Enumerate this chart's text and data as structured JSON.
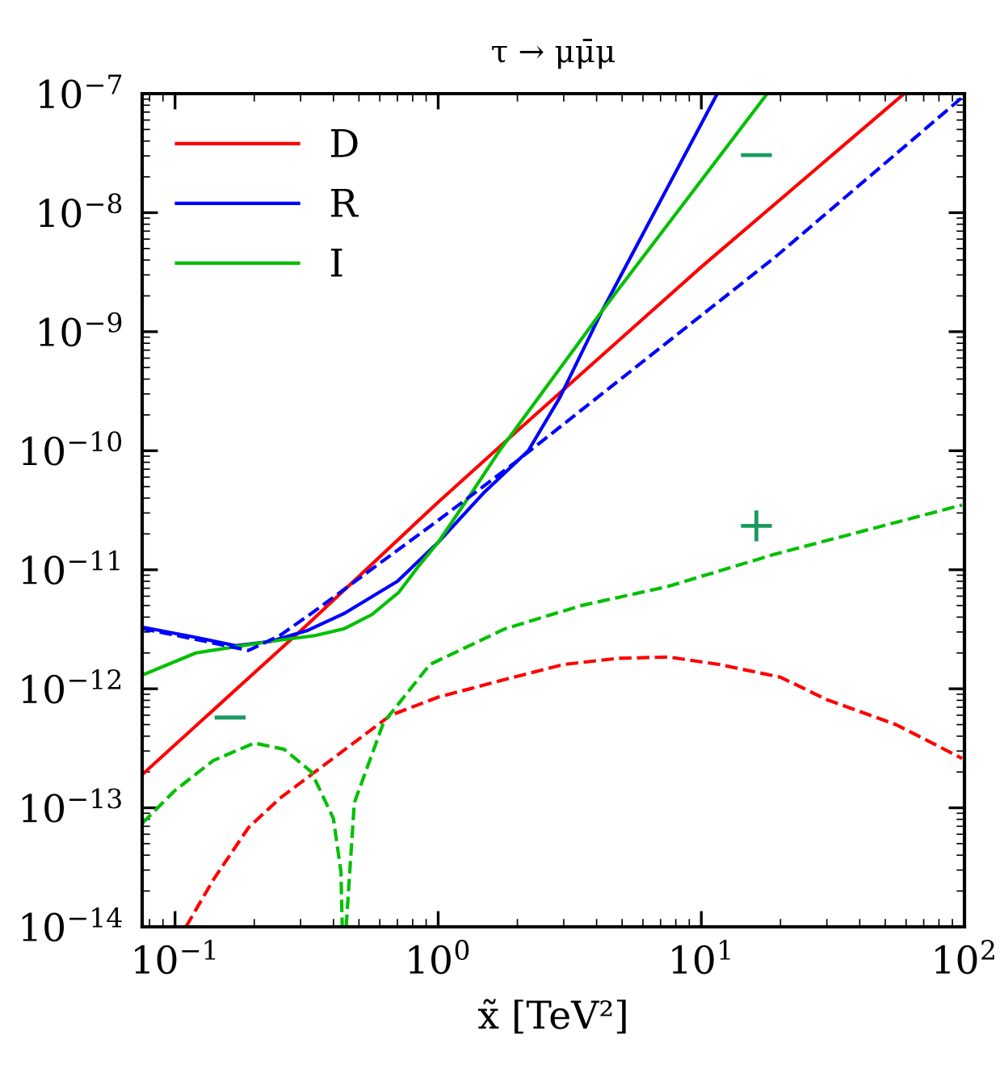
{
  "chart_data": {
    "type": "line",
    "title": "τ → μμ̄μ",
    "xlabel": "x̃ [TeV²]",
    "log": "xy",
    "legend": "top left",
    "xlim": [
      0.075,
      100
    ],
    "xticks": [
      {
        "value": 0.1,
        "label": "10$^{−1}$"
      },
      {
        "value": 1,
        "label": "10$^{0}$"
      },
      {
        "value": 10,
        "label": "10$^{1}$"
      },
      {
        "value": 100,
        "label": "10$^{2}$"
      }
    ],
    "ylim": [
      1e-14,
      1e-07
    ],
    "yticks": [
      {
        "value": 1e-14,
        "label": "10$^{−14}$"
      },
      {
        "value": 1e-13,
        "label": "10$^{−13}$"
      },
      {
        "value": 1e-12,
        "label": "10$^{−12}$"
      },
      {
        "value": 1e-11,
        "label": "10$^{−11}$"
      },
      {
        "value": 1e-10,
        "label": "10$^{−10}$"
      },
      {
        "value": 1e-09,
        "label": "10$^{−9}$"
      },
      {
        "value": 1e-08,
        "label": "10$^{−8}$"
      },
      {
        "value": 1e-07,
        "label": "10$^{−7}$"
      }
    ],
    "series": [
      {
        "name": "D",
        "color": "#ff0000",
        "line_style": "solid",
        "x": [
          0.075,
          0.32,
          1,
          1.95,
          10,
          59
        ],
        "values": [
          1.9e-13,
          3.5e-12,
          3.7e-11,
          1.4e-10,
          3.5e-09,
          1e-07
        ]
      },
      {
        "name": "R",
        "color": "#0000ff",
        "line_style": "solid",
        "x": [
          0.075,
          0.12,
          0.17,
          0.23,
          0.32,
          0.44,
          0.7,
          1,
          1.5,
          2.2,
          2.9,
          4.2,
          11.5
        ],
        "values": [
          3.3e-12,
          2.7e-12,
          2.3e-12,
          2.5e-12,
          3.1e-12,
          4.3e-12,
          8e-12,
          1.7e-11,
          4.5e-11,
          1e-10,
          2.8e-10,
          1.5e-09,
          1e-07
        ]
      },
      {
        "name": "I",
        "color": "#00c000",
        "line_style": "solid",
        "x": [
          0.075,
          0.12,
          0.23,
          0.34,
          0.44,
          0.56,
          0.71,
          0.85,
          1,
          1.3,
          1.7,
          4.2,
          17.8
        ],
        "values": [
          1.3e-12,
          2e-12,
          2.5e-12,
          2.8e-12,
          3.2e-12,
          4.2e-12,
          6.5e-12,
          1.1e-11,
          1.7e-11,
          4e-11,
          9.8e-11,
          1.5e-09,
          1e-07
        ]
      },
      {
        "color": "#ff0000",
        "line_style": "dashed",
        "x": [
          0.11,
          0.14,
          0.19,
          0.25,
          0.34,
          0.66,
          1,
          1.8,
          3,
          4.8,
          7.5,
          11.7,
          20,
          30,
          55,
          98
        ],
        "values": [
          1e-14,
          2.5e-14,
          6.8e-14,
          1.2e-13,
          2e-13,
          6e-13,
          8.5e-13,
          1.2e-12,
          1.6e-12,
          1.8e-12,
          1.85e-12,
          1.6e-12,
          1.25e-12,
          8.1e-13,
          5e-13,
          2.6e-13
        ]
      },
      {
        "color": "#0000ff",
        "line_style": "dashed",
        "x": [
          0.075,
          0.12,
          0.19,
          0.25,
          0.33,
          1,
          1.95,
          19,
          98
        ],
        "values": [
          3.2e-12,
          2.6e-12,
          2.1e-12,
          2.8e-12,
          4.3e-12,
          2.6e-11,
          7.9e-11,
          4.2e-09,
          9.3e-08
        ]
      },
      {
        "color": "#00c000",
        "line_style": "dashed",
        "x": [
          0.075,
          0.1,
          0.14,
          0.2,
          0.26,
          0.33,
          0.4,
          0.427,
          0.432
        ],
        "values": [
          7.4e-14,
          1.4e-13,
          2.5e-13,
          3.5e-13,
          3.1e-13,
          2e-13,
          8.1e-14,
          2.9e-14,
          1e-14
        ]
      },
      {
        "color": "#00c000",
        "line_style": "dashed",
        "x": [
          0.447,
          0.48,
          0.62,
          0.93,
          1.8,
          3.5,
          7.4,
          19,
          98
        ],
        "values": [
          1e-14,
          1.1e-13,
          5.2e-13,
          1.6e-12,
          3.2e-12,
          5e-12,
          7.2e-12,
          1.35e-11,
          3.5e-11
        ]
      }
    ],
    "annotations": [
      "−",
      "+",
      "−"
    ]
  }
}
